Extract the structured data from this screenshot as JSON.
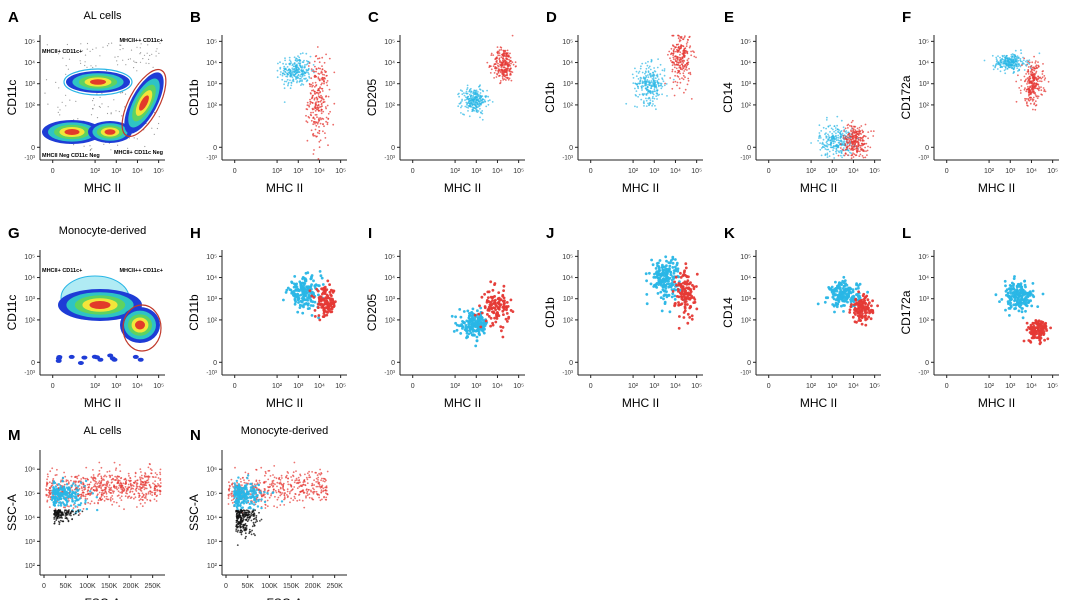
{
  "figure": {
    "colors": {
      "cyan": "#29b6e6",
      "red": "#e53935",
      "black": "#111111",
      "axis": "#222222",
      "gate": "#c0392b",
      "density_low": "#1e3cd6",
      "density_mid1": "#2ec4c4",
      "density_mid2": "#5fd35f",
      "density_mid3": "#f2e53a",
      "density_high": "#e23b2a"
    },
    "panels": [
      {
        "letter": "A",
        "title": "AL cells",
        "ylabel": "CD11c",
        "xlabel": "MHC II",
        "type": "density",
        "gate_labels": [
          "MHCII+ CD11c+",
          "MHCII++ CD11c+",
          "MHCII Neg CD11c Neg",
          "MHCII+ CD11c Neg"
        ]
      },
      {
        "letter": "B",
        "ylabel": "CD11b",
        "xlabel": "MHC II",
        "type": "dense",
        "cyan": {
          "x": 2.9,
          "y": 3.6,
          "sx": 0.35,
          "sy": 0.35
        },
        "red": {
          "x": 3.95,
          "y": 2.2,
          "sx": 0.25,
          "sy": 1.0
        }
      },
      {
        "letter": "C",
        "ylabel": "CD205",
        "xlabel": "MHC II",
        "type": "dense",
        "cyan": {
          "x": 2.9,
          "y": 2.2,
          "sx": 0.3,
          "sy": 0.3
        },
        "red": {
          "x": 4.3,
          "y": 3.9,
          "sx": 0.25,
          "sy": 0.4
        }
      },
      {
        "letter": "D",
        "ylabel": "CD1b",
        "xlabel": "MHC II",
        "type": "dense",
        "cyan": {
          "x": 2.8,
          "y": 3.0,
          "sx": 0.35,
          "sy": 0.45
        },
        "red": {
          "x": 4.25,
          "y": 4.3,
          "sx": 0.25,
          "sy": 0.7
        }
      },
      {
        "letter": "E",
        "ylabel": "CD14",
        "xlabel": "MHC II",
        "type": "dense",
        "cyan": {
          "x": 3.2,
          "y": 0.3,
          "sx": 0.4,
          "sy": 0.4
        },
        "red": {
          "x": 4.1,
          "y": 0.3,
          "sx": 0.3,
          "sy": 0.4
        }
      },
      {
        "letter": "F",
        "ylabel": "CD172a",
        "xlabel": "MHC II",
        "type": "dense",
        "cyan": {
          "x": 3.0,
          "y": 4.0,
          "sx": 0.38,
          "sy": 0.2
        },
        "red": {
          "x": 4.05,
          "y": 3.0,
          "sx": 0.25,
          "sy": 0.5
        }
      },
      {
        "letter": "G",
        "title": "Monocyte-derived",
        "ylabel": "CD11c",
        "xlabel": "MHC II",
        "type": "density",
        "gate_labels": [
          "MHCII+ CD11c+",
          "MHCII++ CD11c+"
        ]
      },
      {
        "letter": "H",
        "ylabel": "CD11b",
        "xlabel": "MHC II",
        "type": "sparse",
        "cyan": {
          "x": 3.3,
          "y": 3.3,
          "sx": 0.4,
          "sy": 0.35
        },
        "red": {
          "x": 4.3,
          "y": 2.8,
          "sx": 0.25,
          "sy": 0.35
        }
      },
      {
        "letter": "I",
        "ylabel": "CD205",
        "xlabel": "MHC II",
        "type": "sparse",
        "cyan": {
          "x": 2.9,
          "y": 1.8,
          "sx": 0.35,
          "sy": 0.3
        },
        "red": {
          "x": 3.95,
          "y": 2.6,
          "sx": 0.3,
          "sy": 0.4
        }
      },
      {
        "letter": "J",
        "ylabel": "CD1b",
        "xlabel": "MHC II",
        "type": "sparse",
        "cyan": {
          "x": 3.5,
          "y": 4.0,
          "sx": 0.35,
          "sy": 0.5
        },
        "red": {
          "x": 4.5,
          "y": 3.2,
          "sx": 0.25,
          "sy": 0.6
        }
      },
      {
        "letter": "K",
        "ylabel": "CD14",
        "xlabel": "MHC II",
        "type": "sparse",
        "cyan": {
          "x": 3.6,
          "y": 3.2,
          "sx": 0.35,
          "sy": 0.3
        },
        "red": {
          "x": 4.4,
          "y": 2.5,
          "sx": 0.25,
          "sy": 0.3
        }
      },
      {
        "letter": "L",
        "ylabel": "CD172a",
        "xlabel": "MHC II",
        "type": "sparse",
        "cyan": {
          "x": 3.4,
          "y": 3.1,
          "sx": 0.35,
          "sy": 0.35
        },
        "red": {
          "x": 4.3,
          "y": 1.5,
          "sx": 0.25,
          "sy": 0.25
        }
      },
      {
        "letter": "M",
        "title": "AL cells",
        "ylabel": "SSC-A",
        "xlabel": "FSC-A",
        "type": "scatter"
      },
      {
        "letter": "N",
        "title": "Monocyte-derived",
        "ylabel": "SSC-A",
        "xlabel": "FSC-A",
        "type": "scatter"
      }
    ],
    "log_ticks": [
      "0",
      "10²",
      "10³",
      "10⁴",
      "10⁵"
    ],
    "neg_tick": "-10³",
    "ssc_ticks": [
      "10²",
      "10³",
      "10⁴",
      "10⁵",
      "10⁶"
    ],
    "fsc_ticks": [
      "0",
      "50K",
      "100K",
      "150K",
      "200K",
      "250K"
    ]
  },
  "chart_data": [
    {
      "panel": "A",
      "type": "scatter",
      "title": "AL cells",
      "xlabel": "MHC II",
      "ylabel": "CD11c",
      "gates": [
        "MHCII+ CD11c+",
        "MHCII++ CD11c+",
        "MHCII Neg CD11c Neg",
        "MHCII+ CD11c Neg"
      ]
    },
    {
      "panel": "B",
      "type": "scatter",
      "xlabel": "MHC II",
      "ylabel": "CD11b",
      "series": [
        {
          "name": "MHCII+ CD11c+",
          "color": "cyan",
          "center_log": [
            2.9,
            3.6
          ]
        },
        {
          "name": "MHCII++ CD11c+",
          "color": "red",
          "center_log": [
            3.95,
            2.2
          ]
        }
      ]
    },
    {
      "panel": "C",
      "type": "scatter",
      "xlabel": "MHC II",
      "ylabel": "CD205",
      "series": [
        {
          "name": "MHCII+ CD11c+",
          "color": "cyan",
          "center_log": [
            2.9,
            2.2
          ]
        },
        {
          "name": "MHCII++ CD11c+",
          "color": "red",
          "center_log": [
            4.3,
            3.9
          ]
        }
      ]
    },
    {
      "panel": "D",
      "type": "scatter",
      "xlabel": "MHC II",
      "ylabel": "CD1b",
      "series": [
        {
          "name": "MHCII+ CD11c+",
          "color": "cyan",
          "center_log": [
            2.8,
            3.0
          ]
        },
        {
          "name": "MHCII++ CD11c+",
          "color": "red",
          "center_log": [
            4.25,
            4.3
          ]
        }
      ]
    },
    {
      "panel": "E",
      "type": "scatter",
      "xlabel": "MHC II",
      "ylabel": "CD14",
      "series": [
        {
          "name": "MHCII+ CD11c+",
          "color": "cyan",
          "center_log": [
            3.2,
            0.3
          ]
        },
        {
          "name": "MHCII++ CD11c+",
          "color": "red",
          "center_log": [
            4.1,
            0.3
          ]
        }
      ]
    },
    {
      "panel": "F",
      "type": "scatter",
      "xlabel": "MHC II",
      "ylabel": "CD172a",
      "series": [
        {
          "name": "MHCII+ CD11c+",
          "color": "cyan",
          "center_log": [
            3.0,
            4.0
          ]
        },
        {
          "name": "MHCII++ CD11c+",
          "color": "red",
          "center_log": [
            4.05,
            3.0
          ]
        }
      ]
    },
    {
      "panel": "G",
      "type": "scatter",
      "title": "Monocyte-derived",
      "xlabel": "MHC II",
      "ylabel": "CD11c",
      "gates": [
        "MHCII+ CD11c+",
        "MHCII++ CD11c+"
      ]
    },
    {
      "panel": "H",
      "type": "scatter",
      "xlabel": "MHC II",
      "ylabel": "CD11b"
    },
    {
      "panel": "I",
      "type": "scatter",
      "xlabel": "MHC II",
      "ylabel": "CD205"
    },
    {
      "panel": "J",
      "type": "scatter",
      "xlabel": "MHC II",
      "ylabel": "CD1b"
    },
    {
      "panel": "K",
      "type": "scatter",
      "xlabel": "MHC II",
      "ylabel": "CD14"
    },
    {
      "panel": "L",
      "type": "scatter",
      "xlabel": "MHC II",
      "ylabel": "CD172a"
    },
    {
      "panel": "M",
      "type": "scatter",
      "title": "AL cells",
      "xlabel": "FSC-A",
      "ylabel": "SSC-A",
      "xlim": [
        0,
        260000
      ]
    },
    {
      "panel": "N",
      "type": "scatter",
      "title": "Monocyte-derived",
      "xlabel": "FSC-A",
      "ylabel": "SSC-A",
      "xlim": [
        0,
        260000
      ]
    }
  ]
}
